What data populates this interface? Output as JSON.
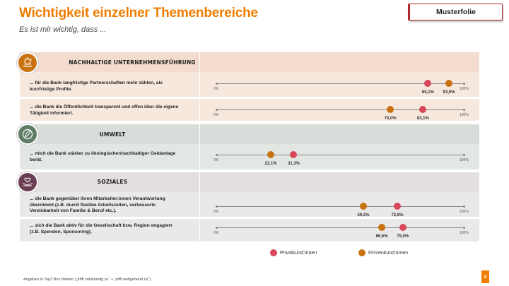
{
  "header": {
    "title": "Wichtigkeit einzelner Themenbereiche",
    "subtitle": "Es ist mir wichtig, dass ...",
    "badge": "Musterfolie"
  },
  "colors": {
    "accent": "#f07d00",
    "privat": "#d9475b",
    "firmen": "#c8730f",
    "section_bg_1": "#f7e8de",
    "section_bg_2": "#e3e7e4",
    "section_bg_3": "#ebe8e9"
  },
  "scale": {
    "min_label": "0%",
    "max_label": "100%"
  },
  "sections": [
    {
      "title": "NACHHALTIGE UNTERNEHMENSFÜHRUNG",
      "icon": "sustainability-icon",
      "items": [
        {
          "text": "... für die Bank langfristige Partnerschaften mehr zählen, als kurzfristige Profite.",
          "privat": 85.1,
          "firmen": 93.5,
          "privat_label": "85,1%",
          "firmen_label": "93,5%"
        },
        {
          "text": "... die Bank die Öffentlichkeit transparent und offen über die eigene Tätigkeit informiert.",
          "privat": 83.1,
          "firmen": 70.0,
          "privat_label": "83,1%",
          "firmen_label": "70,0%"
        }
      ]
    },
    {
      "title": "UMWELT",
      "icon": "leaf-globe-icon",
      "items": [
        {
          "text": "... mich die Bank stärker zu ökologischer/nachhaltiger Geldanlage berät.",
          "privat": 31.3,
          "firmen": 22.1,
          "privat_label": "31,3%",
          "firmen_label": "22,1%"
        }
      ]
    },
    {
      "title": "SOZIALES",
      "icon": "heart-hands-icon",
      "items": [
        {
          "text": "... die Bank gegenüber ihren Mitarbeiter:innen Verantwortung übernimmt (z.B. durch flexible Arbeitszeiten, verbesserte Vereinbarkeit von Familie & Beruf etc.).",
          "privat": 72.8,
          "firmen": 59.2,
          "privat_label": "72,8%",
          "firmen_label": "59,2%"
        },
        {
          "text": "... sich die Bank aktiv für die Gesellschaft bzw. Region engagiert (z.B. Spenden, Sponsoring).",
          "privat": 75.0,
          "firmen": 66.6,
          "privat_label": "75,0%",
          "firmen_label": "66,6%"
        }
      ]
    }
  ],
  "legend": {
    "privat": "Privatkund:innen",
    "firmen": "Firmenkund:innen"
  },
  "footnote": "Angaben in Top2 Box Werten („trifft vollständig zu“ + „trifft weitgehend zu“)",
  "page_number": "4"
}
